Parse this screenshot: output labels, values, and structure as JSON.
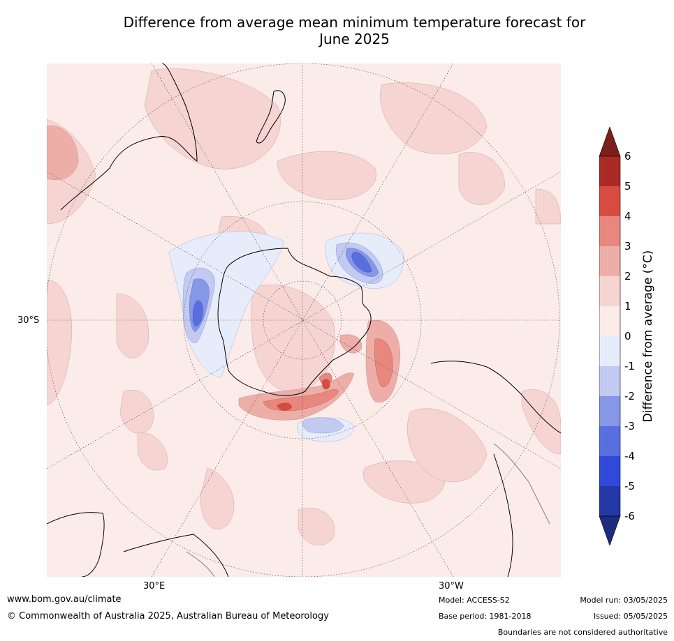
{
  "title_line1": "Difference from average mean minimum temperature forecast for",
  "title_line2": "June 2025",
  "map_labels": {
    "lat_label": "30°S",
    "lon_label_left": "30°E",
    "lon_label_right": "30°W"
  },
  "colorbar": {
    "title": "Difference from average (°C)",
    "ticks": [
      "6",
      "5",
      "4",
      "3",
      "2",
      "1",
      "0",
      "-1",
      "-2",
      "-3",
      "-4",
      "-5",
      "-6"
    ],
    "colors": [
      "#ab2a25",
      "#d74b40",
      "#e8877e",
      "#edaea7",
      "#f5d4d1",
      "#fbebe9",
      "#e7ecfb",
      "#c2caf2",
      "#8697e8",
      "#5a6fdf",
      "#3149da",
      "#2538a8"
    ],
    "over_color": "#7b1f1c",
    "under_color": "#1e2c7f"
  },
  "colors": {
    "land_line": "#000000",
    "border_line": "#808080",
    "grid_line": "#444444"
  },
  "footer": {
    "website": "www.bom.gov.au/climate",
    "copyright": "© Commonwealth of Australia 2025, Australian Bureau of Meteorology",
    "model": "Model: ACCESS-S2",
    "base_period": "Base period: 1981-2018",
    "model_run": "Model run: 03/05/2025",
    "issued": "Issued: 05/05/2025",
    "disclaimer": "Boundaries are not considered authoritative"
  }
}
